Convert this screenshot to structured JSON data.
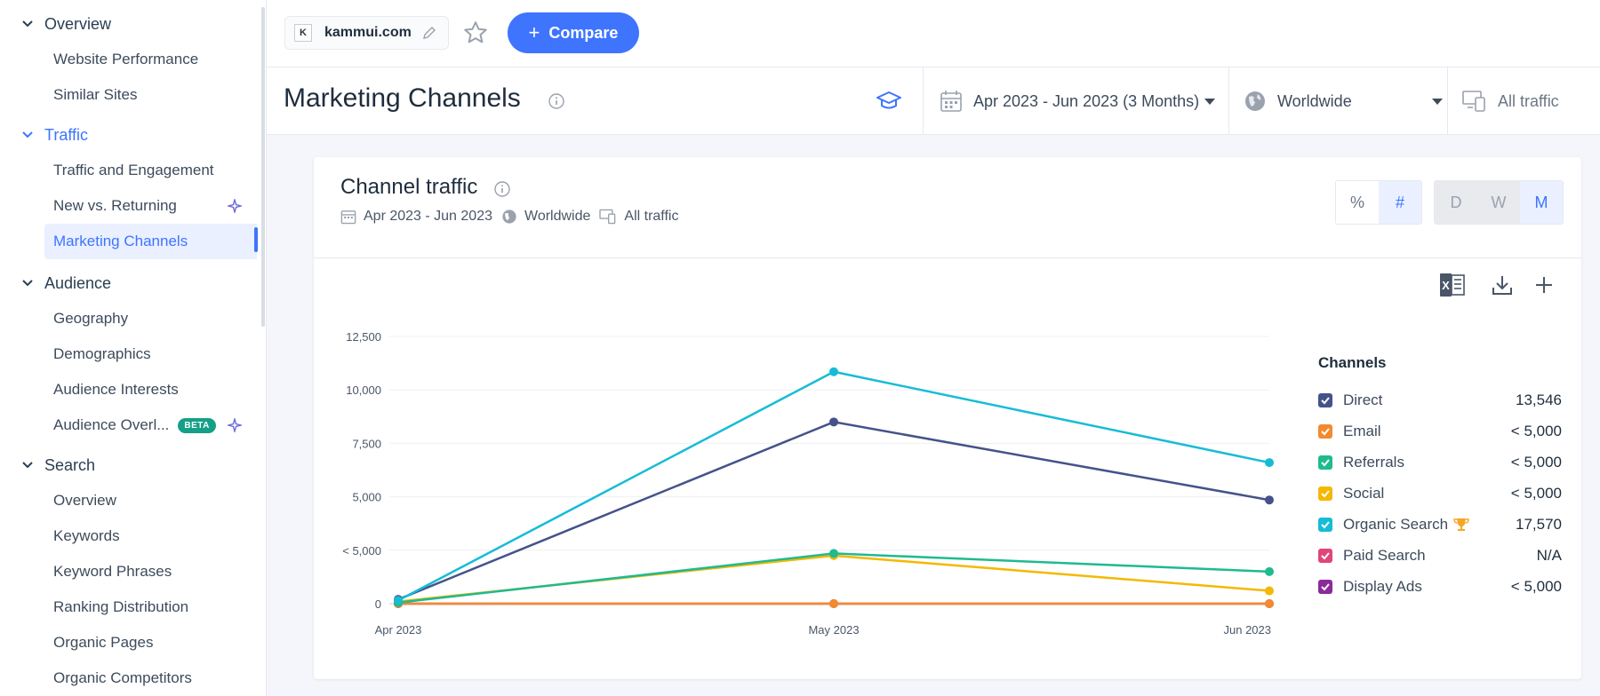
{
  "sidebar": {
    "sections": [
      {
        "label": "Overview",
        "items": [
          "Website Performance",
          "Similar Sites"
        ]
      },
      {
        "label": "Traffic",
        "items": [
          "Traffic and Engagement",
          "New vs. Returning",
          "Marketing Channels"
        ]
      },
      {
        "label": "Audience",
        "items": [
          "Geography",
          "Demographics",
          "Audience Interests",
          "Audience Overl..."
        ]
      },
      {
        "label": "Search",
        "items": [
          "Overview",
          "Keywords",
          "Keyword Phrases",
          "Ranking Distribution",
          "Organic Pages",
          "Organic Competitors"
        ]
      }
    ],
    "beta_badge": "BETA"
  },
  "topbar": {
    "site": "kammui.com",
    "compare_label": "Compare"
  },
  "page": {
    "title": "Marketing Channels",
    "date_filter": "Apr 2023 - Jun 2023 (3 Months)",
    "geo_filter": "Worldwide",
    "traffic_filter": "All traffic"
  },
  "card": {
    "title": "Channel traffic",
    "sub_date": "Apr 2023 - Jun 2023",
    "sub_geo": "Worldwide",
    "sub_traffic": "All traffic",
    "toggle_pct": "%",
    "toggle_num": "#",
    "toggle_d": "D",
    "toggle_w": "W",
    "toggle_m": "M"
  },
  "legend": {
    "title": "Channels",
    "items": [
      {
        "name": "Direct",
        "value": "13,546",
        "color": "#45528a"
      },
      {
        "name": "Email",
        "value": "< 5,000",
        "color": "#f28a2e"
      },
      {
        "name": "Referrals",
        "value": "< 5,000",
        "color": "#1fba8e"
      },
      {
        "name": "Social",
        "value": "< 5,000",
        "color": "#f5b800"
      },
      {
        "name": "Organic Search",
        "value": "17,570",
        "color": "#16bcd6"
      },
      {
        "name": "Paid Search",
        "value": "N/A",
        "color": "#e0457b"
      },
      {
        "name": "Display Ads",
        "value": "< 5,000",
        "color": "#8b2a9a"
      }
    ]
  },
  "chart_data": {
    "type": "line",
    "x": [
      "Apr 2023",
      "May 2023",
      "Jun 2023"
    ],
    "y_ticks": [
      "0",
      "< 5,000",
      "5,000",
      "7,500",
      "10,000",
      "12,500"
    ],
    "ylim": [
      0,
      12500
    ],
    "grid": true,
    "legend_position": "right",
    "series": [
      {
        "name": "Organic Search",
        "color": "#16bcd6",
        "values": [
          150,
          10850,
          6600
        ]
      },
      {
        "name": "Direct",
        "color": "#45528a",
        "values": [
          200,
          8500,
          4850
        ]
      },
      {
        "name": "Referrals",
        "color": "#1fba8e",
        "values": [
          50,
          2350,
          1500
        ]
      },
      {
        "name": "Social",
        "color": "#f5b800",
        "values": [
          100,
          2250,
          600
        ]
      },
      {
        "name": "Email",
        "color": "#f28a2e",
        "values": [
          0,
          0,
          0
        ]
      },
      {
        "name": "Display Ads",
        "color": "#8b2a9a",
        "values": [
          0,
          0,
          0
        ]
      },
      {
        "name": "Paid Search",
        "color": "#e0457b",
        "values": [
          0,
          null,
          null
        ]
      }
    ]
  }
}
